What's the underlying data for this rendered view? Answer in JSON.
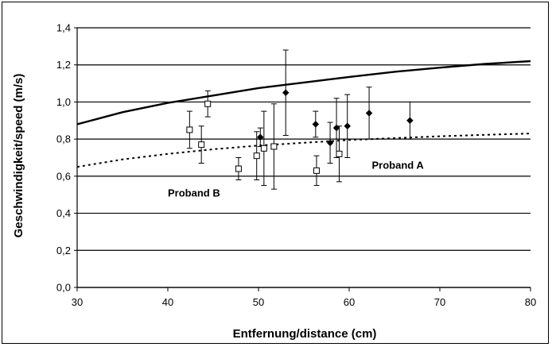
{
  "chart_data": {
    "type": "scatter",
    "title": "",
    "xlabel": "Entfernung/distance (cm)",
    "ylabel": "Geschwindigkeit/speed (m/s)",
    "xlim": [
      30,
      80
    ],
    "ylim": [
      0,
      1.4
    ],
    "x_ticks": [
      "30",
      "40",
      "50",
      "60",
      "70",
      "80"
    ],
    "y_ticks": [
      "0,0",
      "0,2",
      "0,4",
      "0,6",
      "0,8",
      "1,0",
      "1,2",
      "1,4"
    ],
    "grid": "horizontal",
    "annotations": [
      {
        "text": "Proband A",
        "x": 62.5,
        "y": 0.64
      },
      {
        "text": "Proband B",
        "x": 40,
        "y": 0.49
      }
    ],
    "series": [
      {
        "label": "Proband A",
        "marker": "filled-diamond",
        "points": [
          {
            "x": 50.2,
            "y": 0.81,
            "err": 0.05
          },
          {
            "x": 53.0,
            "y": 1.05,
            "err": 0.23
          },
          {
            "x": 56.3,
            "y": 0.88,
            "err": 0.07
          },
          {
            "x": 57.9,
            "y": 0.78,
            "err": 0.11
          },
          {
            "x": 58.6,
            "y": 0.86,
            "err": 0.16
          },
          {
            "x": 59.8,
            "y": 0.87,
            "err": 0.17
          },
          {
            "x": 62.2,
            "y": 0.94,
            "err": 0.14
          },
          {
            "x": 66.7,
            "y": 0.9,
            "err": 0.1
          }
        ]
      },
      {
        "label": "Proband B",
        "marker": "open-square",
        "points": [
          {
            "x": 42.4,
            "y": 0.85,
            "err": 0.1
          },
          {
            "x": 43.7,
            "y": 0.77,
            "err": 0.1
          },
          {
            "x": 44.4,
            "y": 0.99,
            "err": 0.07
          },
          {
            "x": 47.8,
            "y": 0.64,
            "err": 0.06
          },
          {
            "x": 49.8,
            "y": 0.71,
            "err": 0.13
          },
          {
            "x": 50.6,
            "y": 0.75,
            "err": 0.2
          },
          {
            "x": 51.7,
            "y": 0.76,
            "err": 0.23
          },
          {
            "x": 56.4,
            "y": 0.63,
            "err": 0.08
          },
          {
            "x": 58.9,
            "y": 0.72,
            "err": 0.15
          }
        ]
      },
      {
        "label": "Proband A fit",
        "style": "solid",
        "x": [
          30,
          35,
          40,
          45,
          50,
          55,
          60,
          65,
          70,
          75,
          80
        ],
        "y": [
          0.88,
          0.945,
          0.995,
          1.035,
          1.075,
          1.105,
          1.135,
          1.163,
          1.185,
          1.205,
          1.22
        ]
      },
      {
        "label": "Proband B fit",
        "style": "dotted",
        "x": [
          30,
          35,
          40,
          45,
          50,
          55,
          60,
          65,
          70,
          75,
          80
        ],
        "y": [
          0.65,
          0.69,
          0.72,
          0.745,
          0.765,
          0.78,
          0.795,
          0.805,
          0.815,
          0.823,
          0.83
        ]
      }
    ]
  }
}
